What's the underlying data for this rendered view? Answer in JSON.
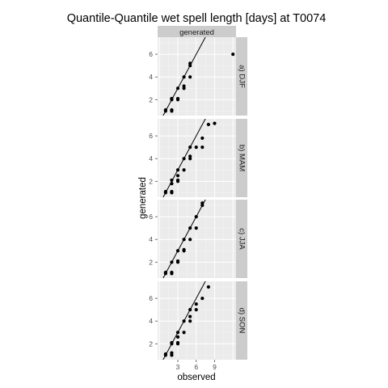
{
  "chart_data": {
    "type": "scatter",
    "title": "Quantile-Quantile wet spell length [days] at T0074",
    "top_strip": "generated",
    "xlabel": "observed",
    "ylabel": "generated",
    "xlim": [
      -0.3,
      12.5
    ],
    "ylim": [
      0.6,
      7.5
    ],
    "x_ticks": [
      3,
      6,
      9
    ],
    "y_ticks": [
      2,
      4,
      6
    ],
    "reference_line": "y = x",
    "grid": true,
    "panels": [
      {
        "label": "a) DJF",
        "points": [
          [
            1,
            1
          ],
          [
            1,
            1.1
          ],
          [
            2,
            1
          ],
          [
            2,
            1.1
          ],
          [
            2,
            2
          ],
          [
            2,
            2.1
          ],
          [
            3,
            2
          ],
          [
            3,
            2.1
          ],
          [
            3,
            3
          ],
          [
            4,
            3
          ],
          [
            4,
            3.2
          ],
          [
            4,
            4
          ],
          [
            5,
            4
          ],
          [
            5,
            5
          ],
          [
            5,
            5.2
          ],
          [
            12,
            6
          ]
        ]
      },
      {
        "label": "b) MAM",
        "points": [
          [
            1,
            1
          ],
          [
            1,
            1.1
          ],
          [
            2,
            1
          ],
          [
            2,
            1.1
          ],
          [
            2,
            1.8
          ],
          [
            2,
            2.1
          ],
          [
            3,
            2
          ],
          [
            3,
            2.1
          ],
          [
            3,
            2.5
          ],
          [
            3,
            3
          ],
          [
            4,
            3
          ],
          [
            4,
            4
          ],
          [
            5,
            4
          ],
          [
            5,
            4.2
          ],
          [
            5,
            5
          ],
          [
            6,
            5
          ],
          [
            7,
            5
          ],
          [
            7,
            5.8
          ],
          [
            8,
            7
          ],
          [
            9,
            7.1
          ]
        ]
      },
      {
        "label": "c) JJA",
        "points": [
          [
            1,
            1
          ],
          [
            1,
            1.1
          ],
          [
            2,
            1
          ],
          [
            2,
            1.1
          ],
          [
            2,
            2
          ],
          [
            3,
            2
          ],
          [
            3,
            2.1
          ],
          [
            3,
            3
          ],
          [
            4,
            3
          ],
          [
            4,
            3.1
          ],
          [
            4,
            4
          ],
          [
            5,
            4
          ],
          [
            5,
            5
          ],
          [
            6,
            5
          ],
          [
            6,
            6
          ],
          [
            7,
            7
          ],
          [
            7,
            7.2
          ]
        ]
      },
      {
        "label": "d) SON",
        "points": [
          [
            1,
            1
          ],
          [
            1,
            1.1
          ],
          [
            2,
            1
          ],
          [
            2,
            1.2
          ],
          [
            2,
            2
          ],
          [
            2,
            2.1
          ],
          [
            3,
            2
          ],
          [
            3,
            2.1
          ],
          [
            3,
            2.6
          ],
          [
            3,
            3
          ],
          [
            4,
            3
          ],
          [
            4,
            4
          ],
          [
            5,
            4
          ],
          [
            5,
            4.4
          ],
          [
            5,
            5
          ],
          [
            6,
            5
          ],
          [
            6,
            5.5
          ],
          [
            7,
            6
          ],
          [
            8,
            7
          ]
        ]
      }
    ]
  }
}
